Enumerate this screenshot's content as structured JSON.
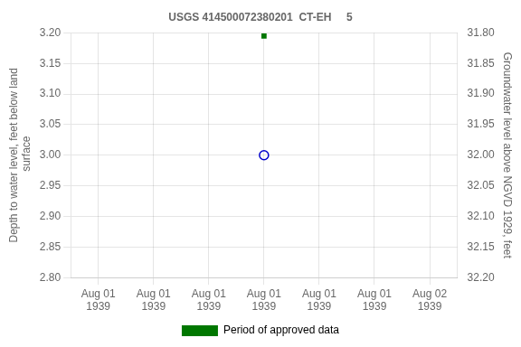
{
  "chart_data": {
    "type": "line",
    "title": "USGS 414500072380201  CT-EH     5",
    "categories": [
      "Aug 01\n1939",
      "Aug 01\n1939",
      "Aug 01\n1939",
      "Aug 01\n1939",
      "Aug 01\n1939",
      "Aug 01\n1939",
      "Aug 02\n1939"
    ],
    "series": [
      {
        "color": "#0000cc",
        "marker": "open_circle",
        "line_style": "none",
        "values": [
          null,
          null,
          null,
          3.0,
          null,
          null,
          null
        ]
      },
      {
        "name": "Period of approved data",
        "color": "#007700",
        "marker": "square",
        "line_style": "none",
        "values": [
          null,
          null,
          null,
          3.195,
          null,
          null,
          null
        ]
      }
    ],
    "ylabel": "Depth to water level, feet below land\n surface",
    "y2label": "Groundwater level above NGVD 1929, feet",
    "ylim": [
      2.8,
      3.2
    ],
    "yticks": [
      {
        "value": 2.8,
        "label": "2.80"
      },
      2.85,
      {
        "value": 2.9,
        "label": "2.90"
      },
      2.95,
      {
        "value": 3.0,
        "label": "3.00"
      },
      3.05,
      {
        "value": 3.1,
        "label": "3.10"
      },
      3.15,
      {
        "value": 3.2,
        "label": "3.20"
      }
    ],
    "y2lim": [
      32.2,
      31.8
    ],
    "y2ticks": [
      {
        "value": 32.2,
        "label": "32.20"
      },
      32.15,
      {
        "value": 32.1,
        "label": "32.10"
      },
      32.05,
      {
        "value": 32.0,
        "label": "32.00"
      },
      31.95,
      {
        "value": 31.9,
        "label": "31.90"
      },
      31.85,
      {
        "value": 31.8,
        "label": "31.80"
      }
    ],
    "grid": true,
    "legend": "bottom"
  }
}
